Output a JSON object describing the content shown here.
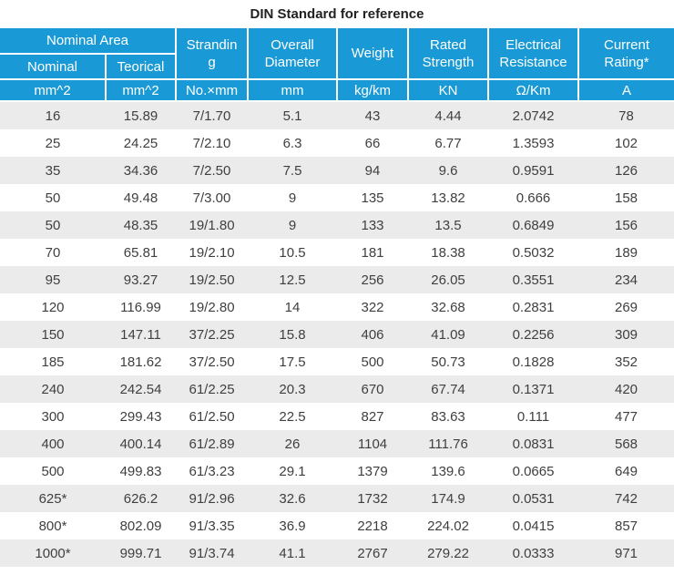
{
  "title": "DIN Standard for reference",
  "colors": {
    "header_bg": "#1999d5",
    "header_text": "#ffffff",
    "row_stripe": "#ebebeb",
    "body_text": "#3f3f3f"
  },
  "table": {
    "header": {
      "nominal_area_group": "Nominal Area",
      "nominal": "Nominal",
      "teorical": "Teorical",
      "stranding": "Stranding",
      "overall_diameter": "Overall Diameter",
      "weight": "Weight",
      "rated_strength": "Rated Strength",
      "electrical_resistance": "Electrical Resistance",
      "current_rating": "Current Rating*"
    },
    "units": [
      "mm^2",
      "mm^2",
      "No.×mm",
      "mm",
      "kg/km",
      "KN",
      "Ω/Km",
      "A"
    ],
    "rows": [
      [
        "16",
        "15.89",
        "7/1.70",
        "5.1",
        "43",
        "4.44",
        "2.0742",
        "78"
      ],
      [
        "25",
        "24.25",
        "7/2.10",
        "6.3",
        "66",
        "6.77",
        "1.3593",
        "102"
      ],
      [
        "35",
        "34.36",
        "7/2.50",
        "7.5",
        "94",
        "9.6",
        "0.9591",
        "126"
      ],
      [
        "50",
        "49.48",
        "7/3.00",
        "9",
        "135",
        "13.82",
        "0.666",
        "158"
      ],
      [
        "50",
        "48.35",
        "19/1.80",
        "9",
        "133",
        "13.5",
        "0.6849",
        "156"
      ],
      [
        "70",
        "65.81",
        "19/2.10",
        "10.5",
        "181",
        "18.38",
        "0.5032",
        "189"
      ],
      [
        "95",
        "93.27",
        "19/2.50",
        "12.5",
        "256",
        "26.05",
        "0.3551",
        "234"
      ],
      [
        "120",
        "116.99",
        "19/2.80",
        "14",
        "322",
        "32.68",
        "0.2831",
        "269"
      ],
      [
        "150",
        "147.11",
        "37/2.25",
        "15.8",
        "406",
        "41.09",
        "0.2256",
        "309"
      ],
      [
        "185",
        "181.62",
        "37/2.50",
        "17.5",
        "500",
        "50.73",
        "0.1828",
        "352"
      ],
      [
        "240",
        "242.54",
        "61/2.25",
        "20.3",
        "670",
        "67.74",
        "0.1371",
        "420"
      ],
      [
        "300",
        "299.43",
        "61/2.50",
        "22.5",
        "827",
        "83.63",
        "0.111",
        "477"
      ],
      [
        "400",
        "400.14",
        "61/2.89",
        "26",
        "1104",
        "111.76",
        "0.0831",
        "568"
      ],
      [
        "500",
        "499.83",
        "61/3.23",
        "29.1",
        "1379",
        "139.6",
        "0.0665",
        "649"
      ],
      [
        "625*",
        "626.2",
        "91/2.96",
        "32.6",
        "1732",
        "174.9",
        "0.0531",
        "742"
      ],
      [
        "800*",
        "802.09",
        "91/3.35",
        "36.9",
        "2218",
        "224.02",
        "0.0415",
        "857"
      ],
      [
        "1000*",
        "999.71",
        "91/3.74",
        "41.1",
        "2767",
        "279.22",
        "0.0333",
        "971"
      ]
    ]
  }
}
